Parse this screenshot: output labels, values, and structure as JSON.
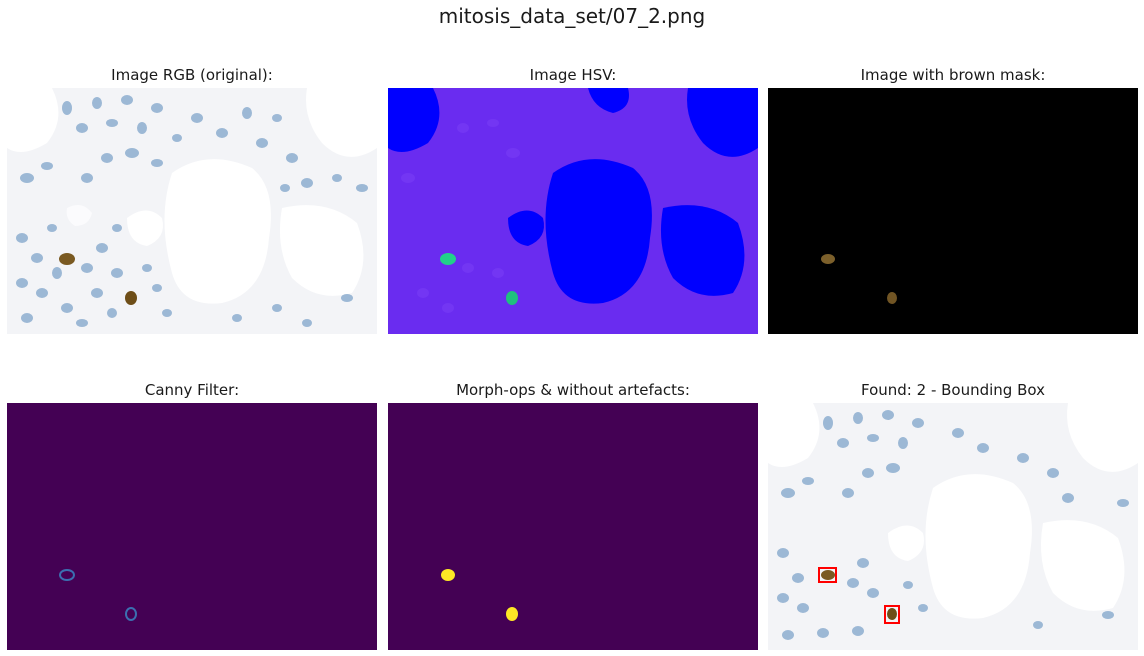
{
  "figure": {
    "suptitle": "mitosis_data_set/07_2.png"
  },
  "panels": [
    {
      "title": "Image RGB (original):",
      "kind": "histology-rgb"
    },
    {
      "title": "Image HSV:",
      "kind": "histology-hsv"
    },
    {
      "title": "Image with brown mask:",
      "kind": "brown-mask"
    },
    {
      "title": "Canny Filter:",
      "kind": "canny-edges"
    },
    {
      "title": "Morph-ops & without artefacts:",
      "kind": "morph-mask"
    },
    {
      "title": "Found: 2 - Bounding Box",
      "kind": "bounding-box"
    }
  ],
  "colors": {
    "stain_blue": "#7fa3c6",
    "tissue_bg": "#f4f5f8",
    "brown_nucleus": "#7a5a22",
    "hsv_blue": "#0000ff",
    "hsv_purple": "#6a2cf0",
    "viridis_dark": "#440154",
    "viridis_yellow": "#fde725",
    "bbox_red": "#ff0000"
  }
}
